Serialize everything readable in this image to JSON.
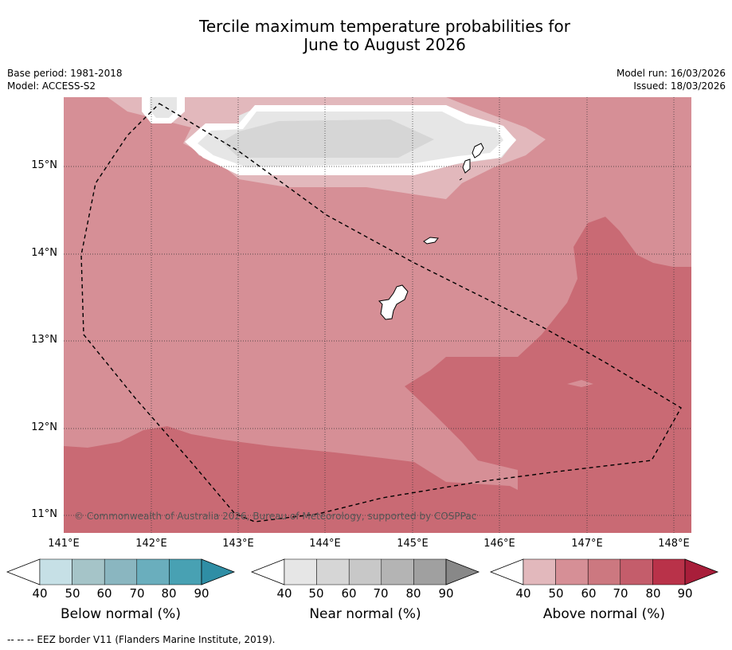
{
  "title_line1": "Tercile maximum temperature probabilities for",
  "title_line2": "June to August 2026",
  "meta": {
    "base_period": "Base period: 1981-2018",
    "model": "Model: ACCESS-S2",
    "model_run": "Model run: 16/03/2026",
    "issued": "Issued: 18/03/2026"
  },
  "map": {
    "lat_labels": [
      "15°N",
      "14°N",
      "13°N",
      "12°N",
      "11°N"
    ],
    "lon_labels": [
      "141°E",
      "142°E",
      "143°E",
      "144°E",
      "145°E",
      "146°E",
      "147°E",
      "148°E"
    ],
    "copyright": "© Commonwealth of Australia 2026, Bureau of Meteorology, supported by COSPPac",
    "colors": {
      "above_50": "#d68f96",
      "above_60": "#c96a74",
      "above_40": "#e2b8bc",
      "near_50": "#d6d6d6",
      "near_40": "#e6e6e6"
    }
  },
  "colorbars": [
    {
      "title": "Below normal (%)",
      "ticks": [
        "40",
        "50",
        "60",
        "70",
        "80",
        "90"
      ],
      "colors": [
        "#c6e0e6",
        "#a5c4c8",
        "#8ab6c0",
        "#6aaebd",
        "#48a1b3",
        "#2f8ea5"
      ]
    },
    {
      "title": "Near normal (%)",
      "ticks": [
        "40",
        "50",
        "60",
        "70",
        "80",
        "90"
      ],
      "colors": [
        "#e6e6e6",
        "#d6d6d6",
        "#c8c8c8",
        "#b4b4b4",
        "#a0a0a0",
        "#888888"
      ]
    },
    {
      "title": "Above normal (%)",
      "ticks": [
        "40",
        "50",
        "60",
        "70",
        "80",
        "90"
      ],
      "colors": [
        "#e2b8bc",
        "#d68f96",
        "#cc7880",
        "#c45d6b",
        "#b93249",
        "#a81e3a"
      ]
    }
  ],
  "footnote": "--  --  -- EEZ border V11 (Flanders Marine Institute, 2019)."
}
